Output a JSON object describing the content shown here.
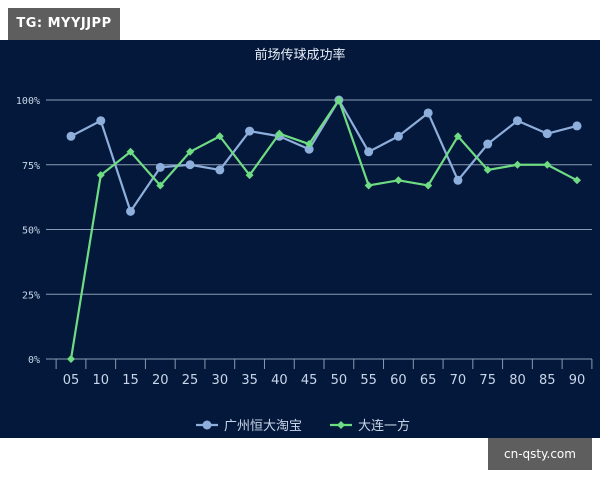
{
  "watermark_top": "TG: MYYJJPP",
  "watermark_bottom": "cn-qsty.com",
  "colors": {
    "background": "#03183a",
    "grid": "#8b9bb5",
    "series_guangzhou": "#8eaedb",
    "series_dalian": "#6fdc84",
    "text": "#c9d6ea"
  },
  "chart_data": {
    "type": "line",
    "title": "前场传球成功率",
    "xlabel": "",
    "ylabel": "",
    "categories": [
      "05",
      "10",
      "15",
      "20",
      "25",
      "30",
      "35",
      "40",
      "45",
      "50",
      "55",
      "60",
      "65",
      "70",
      "75",
      "80",
      "85",
      "90"
    ],
    "yticks": [
      "0%",
      "25%",
      "50%",
      "75%",
      "100%"
    ],
    "ylim": [
      0,
      100
    ],
    "grid": true,
    "legend_position": "bottom",
    "series": [
      {
        "name": "广州恒大淘宝",
        "marker": "circle",
        "values": [
          86,
          92,
          57,
          74,
          75,
          73,
          88,
          86,
          81,
          100,
          80,
          86,
          95,
          69,
          83,
          92,
          87,
          90
        ]
      },
      {
        "name": "大连一方",
        "marker": "diamond",
        "values": [
          0,
          71,
          80,
          67,
          80,
          86,
          71,
          87,
          83,
          100,
          67,
          69,
          67,
          86,
          73,
          75,
          75,
          69
        ]
      }
    ]
  }
}
